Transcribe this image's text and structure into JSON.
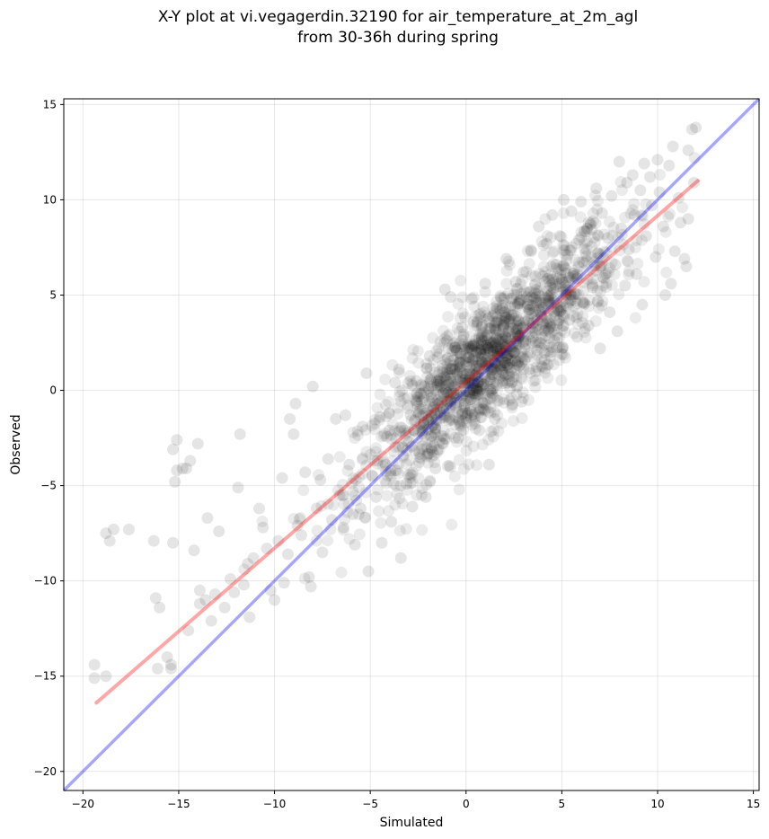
{
  "chart_data": {
    "type": "scatter",
    "title_line1": "X-Y plot at vi.vegagerdin.32190 for air_temperature_at_2m_agl",
    "title_line2": "from 30-36h during spring",
    "xlabel": "Simulated",
    "ylabel": "Observed",
    "xlim": [
      -21,
      15.3
    ],
    "ylim": [
      -21,
      15.3
    ],
    "xticks": [
      -20,
      -15,
      -10,
      -5,
      0,
      5,
      10,
      15
    ],
    "yticks": [
      -20,
      -15,
      -10,
      -5,
      0,
      5,
      10,
      15
    ],
    "xtick_labels": [
      "−20",
      "−15",
      "−10",
      "−5",
      "0",
      "5",
      "10",
      "15"
    ],
    "ytick_labels": [
      "−20",
      "−15",
      "−10",
      "−5",
      "0",
      "5",
      "10",
      "15"
    ],
    "grid": true,
    "colors": {
      "points": "#000000",
      "identity_line": "#0000ff",
      "fit_line": "#ff0000"
    },
    "identity_line": {
      "x": [
        -21,
        15.3
      ],
      "y": [
        -21,
        15.3
      ]
    },
    "fit_line": {
      "x": [
        -19.3,
        12.1
      ],
      "y": [
        -16.4,
        11.0
      ]
    },
    "points": [
      [
        -19.4,
        -14.4
      ],
      [
        -19.4,
        -15.1
      ],
      [
        -18.8,
        -15.0
      ],
      [
        -18.8,
        -7.5
      ],
      [
        -18.6,
        -7.9
      ],
      [
        -18.4,
        -7.3
      ],
      [
        -17.6,
        -7.3
      ],
      [
        -16.3,
        -7.9
      ],
      [
        -16.2,
        -10.9
      ],
      [
        -16.0,
        -11.4
      ],
      [
        -16.1,
        -14.6
      ],
      [
        -15.6,
        -14.0
      ],
      [
        -15.4,
        -14.4
      ],
      [
        -15.4,
        -14.6
      ],
      [
        -15.3,
        -3.1
      ],
      [
        -15.2,
        -4.8
      ],
      [
        -15.1,
        -4.2
      ],
      [
        -15.1,
        -2.6
      ],
      [
        -15.3,
        -8.0
      ],
      [
        -14.8,
        -4.1
      ],
      [
        -14.6,
        -4.1
      ],
      [
        -14.5,
        -12.6
      ],
      [
        -14.4,
        -3.7
      ],
      [
        -14.2,
        -8.4
      ],
      [
        -14.0,
        -2.8
      ],
      [
        -13.9,
        -10.5
      ],
      [
        -13.9,
        -11.2
      ],
      [
        -13.6,
        -11.0
      ],
      [
        -13.5,
        -6.7
      ],
      [
        -13.3,
        -12.1
      ],
      [
        -13.1,
        -10.7
      ],
      [
        -12.9,
        -7.4
      ],
      [
        -12.6,
        -11.4
      ],
      [
        -12.3,
        -9.9
      ],
      [
        -12.1,
        -10.6
      ],
      [
        -11.9,
        -5.1
      ],
      [
        -11.8,
        -2.3
      ],
      [
        -11.6,
        -10.2
      ],
      [
        -11.4,
        -9.1
      ],
      [
        -11.3,
        -11.9
      ],
      [
        -11.1,
        -8.8
      ],
      [
        -10.8,
        -6.2
      ],
      [
        -10.6,
        -7.2
      ],
      [
        -10.4,
        -8.3
      ],
      [
        -10.2,
        -10.5
      ],
      [
        -10.0,
        -11.0
      ],
      [
        -9.8,
        -7.9
      ],
      [
        -9.6,
        -4.6
      ],
      [
        -9.5,
        -10.1
      ],
      [
        -9.3,
        -8.6
      ],
      [
        -9.2,
        -1.5
      ],
      [
        -9.0,
        -2.3
      ],
      [
        -8.9,
        -0.7
      ],
      [
        -8.8,
        -7.1
      ],
      [
        -8.6,
        -7.6
      ],
      [
        -8.4,
        -4.3
      ],
      [
        -8.2,
        -9.8
      ],
      [
        -8.1,
        -10.3
      ],
      [
        -8.0,
        0.2
      ],
      [
        -7.8,
        -6.2
      ],
      [
        -7.6,
        -4.7
      ],
      [
        -7.5,
        -8.5
      ],
      [
        -7.2,
        -3.6
      ],
      [
        -7.0,
        -6.8
      ],
      [
        -6.8,
        -1.5
      ],
      [
        -6.6,
        -5.5
      ],
      [
        -6.4,
        -7.2
      ],
      [
        -6.3,
        -1.3
      ],
      [
        -6.1,
        -3.9
      ],
      [
        -5.9,
        -6.5
      ],
      [
        -5.8,
        -8.1
      ],
      [
        -5.5,
        -6.2
      ],
      [
        -5.4,
        -1.9
      ],
      [
        -5.2,
        0.9
      ],
      [
        -5.1,
        -9.5
      ],
      [
        -4.9,
        -4.5
      ],
      [
        -4.7,
        -5.6
      ],
      [
        -4.5,
        -1.4
      ],
      [
        -4.4,
        -8.0
      ],
      [
        -4.2,
        -3.9
      ],
      [
        -4.0,
        -2.1
      ],
      [
        -3.9,
        -6.9
      ],
      [
        -3.7,
        0.4
      ],
      [
        -3.5,
        1.1
      ],
      [
        -3.4,
        -8.8
      ],
      [
        -3.3,
        -3.0
      ],
      [
        -3.1,
        -4.9
      ],
      [
        -2.9,
        -1.3
      ],
      [
        -2.8,
        -6.1
      ],
      [
        -2.6,
        0.5
      ],
      [
        -2.4,
        -3.5
      ],
      [
        -2.2,
        -1.8
      ],
      [
        -2.1,
        -5.6
      ],
      [
        -1.9,
        1.8
      ],
      [
        -1.8,
        -2.4
      ],
      [
        -1.6,
        -4.1
      ],
      [
        -1.5,
        0.3
      ],
      [
        -1.3,
        -0.6
      ],
      [
        -1.2,
        -2.8
      ],
      [
        -1.1,
        5.3
      ],
      [
        -1.0,
        2.6
      ],
      [
        -0.9,
        -1.6
      ],
      [
        -0.8,
        4.9
      ],
      [
        -0.6,
        1.1
      ],
      [
        -0.5,
        -0.4
      ],
      [
        -0.4,
        -2.5
      ],
      [
        -0.3,
        0.6
      ],
      [
        -0.2,
        3.3
      ],
      [
        -0.1,
        -0.9
      ],
      [
        0.0,
        1.8
      ],
      [
        0.1,
        -1.2
      ],
      [
        0.2,
        0.7
      ],
      [
        0.3,
        4.8
      ],
      [
        0.4,
        2.4
      ],
      [
        0.5,
        -0.3
      ],
      [
        0.6,
        3.6
      ],
      [
        0.7,
        -2.1
      ],
      [
        0.8,
        1.5
      ],
      [
        0.9,
        0.3
      ],
      [
        1.0,
        5.6
      ],
      [
        1.1,
        2.9
      ],
      [
        1.2,
        -3.9
      ],
      [
        1.3,
        1.0
      ],
      [
        1.4,
        3.9
      ],
      [
        1.5,
        -1.5
      ],
      [
        1.6,
        2.2
      ],
      [
        1.7,
        0.6
      ],
      [
        1.8,
        4.2
      ],
      [
        1.9,
        2.7
      ],
      [
        2.0,
        1.3
      ],
      [
        2.1,
        6.9
      ],
      [
        2.2,
        3.1
      ],
      [
        2.3,
        0.1
      ],
      [
        2.4,
        4.8
      ],
      [
        2.5,
        2.0
      ],
      [
        2.6,
        5.7
      ],
      [
        2.7,
        1.5
      ],
      [
        2.8,
        3.4
      ],
      [
        2.9,
        -0.6
      ],
      [
        3.0,
        6.2
      ],
      [
        3.1,
        2.6
      ],
      [
        3.2,
        4.4
      ],
      [
        3.3,
        1.1
      ],
      [
        3.4,
        7.3
      ],
      [
        3.5,
        3.5
      ],
      [
        3.6,
        5.1
      ],
      [
        3.7,
        2.1
      ],
      [
        3.8,
        8.6
      ],
      [
        3.9,
        4.0
      ],
      [
        4.0,
        6.0
      ],
      [
        4.1,
        1.6
      ],
      [
        4.2,
        7.7
      ],
      [
        4.3,
        3.2
      ],
      [
        4.4,
        5.5
      ],
      [
        4.5,
        9.2
      ],
      [
        4.6,
        2.6
      ],
      [
        4.7,
        6.6
      ],
      [
        4.8,
        4.3
      ],
      [
        4.9,
        8.1
      ],
      [
        5.0,
        1.9
      ],
      [
        5.1,
        10.0
      ],
      [
        5.2,
        5.0
      ],
      [
        5.3,
        7.1
      ],
      [
        5.4,
        3.7
      ],
      [
        5.5,
        9.4
      ],
      [
        5.6,
        6.0
      ],
      [
        5.8,
        2.8
      ],
      [
        5.9,
        7.9
      ],
      [
        6.0,
        9.9
      ],
      [
        6.1,
        4.6
      ],
      [
        6.3,
        6.8
      ],
      [
        6.4,
        3.4
      ],
      [
        6.5,
        8.7
      ],
      [
        6.6,
        5.4
      ],
      [
        6.8,
        10.6
      ],
      [
        6.9,
        7.2
      ],
      [
        7.0,
        2.2
      ],
      [
        7.1,
        9.3
      ],
      [
        7.2,
        5.9
      ],
      [
        7.4,
        8.0
      ],
      [
        7.5,
        4.1
      ],
      [
        7.6,
        10.2
      ],
      [
        7.8,
        6.6
      ],
      [
        7.9,
        3.1
      ],
      [
        8.0,
        12.0
      ],
      [
        8.1,
        8.5
      ],
      [
        8.3,
        5.5
      ],
      [
        8.4,
        10.9
      ],
      [
        8.5,
        7.4
      ],
      [
        8.7,
        11.3
      ],
      [
        8.8,
        9.2
      ],
      [
        8.9,
        6.1
      ],
      [
        9.1,
        10.5
      ],
      [
        9.2,
        4.5
      ],
      [
        9.3,
        11.9
      ],
      [
        9.4,
        8.1
      ],
      [
        9.6,
        11.2
      ],
      [
        9.7,
        9.7
      ],
      [
        9.9,
        7.0
      ],
      [
        10.0,
        12.1
      ],
      [
        10.1,
        10.4
      ],
      [
        10.3,
        8.6
      ],
      [
        10.4,
        5.0
      ],
      [
        10.6,
        11.8
      ],
      [
        10.8,
        12.8
      ],
      [
        10.9,
        7.3
      ],
      [
        11.1,
        10.1
      ],
      [
        11.2,
        8.8
      ],
      [
        11.4,
        6.9
      ],
      [
        11.6,
        12.6
      ],
      [
        11.8,
        13.7
      ],
      [
        11.9,
        10.9
      ],
      [
        12.0,
        13.8
      ],
      [
        11.5,
        6.5
      ],
      [
        10.7,
        5.6
      ],
      [
        11.6,
        9.0
      ]
    ]
  }
}
